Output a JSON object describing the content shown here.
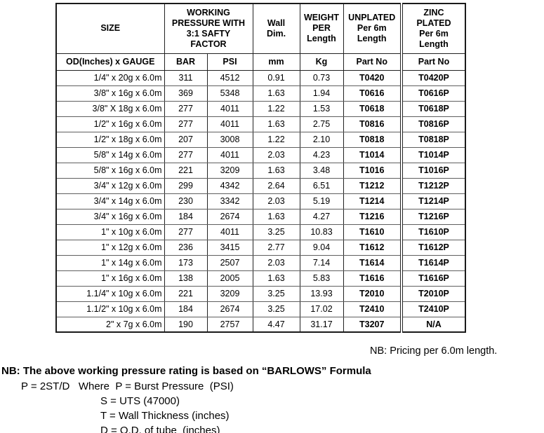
{
  "colors": {
    "background": "#ffffff",
    "text": "#000000",
    "outer_border": "#1a1a1a",
    "vertical_rule": "#222222",
    "row_divider": "#5f5f5f"
  },
  "table": {
    "header1": {
      "size": "SIZE",
      "working_pressure": "WORKING\nPRESSURE WITH\n3:1 SAFTY\nFACTOR",
      "wall_dim": "Wall\nDim.",
      "weight_per_length": "WEIGHT\nPER\nLength",
      "unplated": "UNPLATED\nPer 6m\nLength",
      "zinc_plated": "ZINC\nPLATED\nPer 6m\nLength"
    },
    "header2": {
      "size": "OD(Inches) x GAUGE",
      "bar": "BAR",
      "psi": "PSI",
      "mm": "mm",
      "kg": "Kg",
      "unplated_part_no": "Part No",
      "zinc_part_no": "Part No"
    },
    "rows": [
      [
        "1/4\" x 20g x 6.0m",
        "311",
        "4512",
        "0.91",
        "0.73",
        "T0420",
        "T0420P"
      ],
      [
        "3/8\" x 16g x 6.0m",
        "369",
        "5348",
        "1.63",
        "1.94",
        "T0616",
        "T0616P"
      ],
      [
        "3/8\" X 18g x 6.0m",
        "277",
        "4011",
        "1.22",
        "1.53",
        "T0618",
        "T0618P"
      ],
      [
        "1/2\" x 16g x 6.0m",
        "277",
        "4011",
        "1.63",
        "2.75",
        "T0816",
        "T0816P"
      ],
      [
        "1/2\" x 18g x 6.0m",
        "207",
        "3008",
        "1.22",
        "2.10",
        "T0818",
        "T0818P"
      ],
      [
        "5/8\" x 14g x 6.0m",
        "277",
        "4011",
        "2.03",
        "4.23",
        "T1014",
        "T1014P"
      ],
      [
        "5/8\" x 16g x 6.0m",
        "221",
        "3209",
        "1.63",
        "3.48",
        "T1016",
        "T1016P"
      ],
      [
        "3/4\" x 12g x 6.0m",
        "299",
        "4342",
        "2.64",
        "6.51",
        "T1212",
        "T1212P"
      ],
      [
        "3/4\" x 14g x 6.0m",
        "230",
        "3342",
        "2.03",
        "5.19",
        "T1214",
        "T1214P"
      ],
      [
        "3/4\" x 16g x 6.0m",
        "184",
        "2674",
        "1.63",
        "4.27",
        "T1216",
        "T1216P"
      ],
      [
        "1\" x 10g x 6.0m",
        "277",
        "4011",
        "3.25",
        "10.83",
        "T1610",
        "T1610P"
      ],
      [
        "1\" x 12g x 6.0m",
        "236",
        "3415",
        "2.77",
        "9.04",
        "T1612",
        "T1612P"
      ],
      [
        "1\" x 14g x 6.0m",
        "173",
        "2507",
        "2.03",
        "7.14",
        "T1614",
        "T1614P"
      ],
      [
        "1\" x 16g x 6.0m",
        "138",
        "2005",
        "1.63",
        "5.83",
        "T1616",
        "T1616P"
      ],
      [
        "1.1/4\" x 10g x 6.0m",
        "221",
        "3209",
        "3.25",
        "13.93",
        "T2010",
        "T2010P"
      ],
      [
        "1.1/2\" x 10g x 6.0m",
        "184",
        "2674",
        "3.25",
        "17.02",
        "T2410",
        "T2410P"
      ],
      [
        "2\" x 7g x 6.0m",
        "190",
        "2757",
        "4.47",
        "31.17",
        "T3207",
        "N/A"
      ]
    ]
  },
  "notes": {
    "pricing": "NB: Pricing per 6.0m length.",
    "formula_heading": "NB: The above working pressure rating is based on “BARLOWS” Formula",
    "formula_line_p": "P = 2ST/D   Where  P = Burst Pressure  (PSI)",
    "formula_line_s": "S = UTS (47000)",
    "formula_line_t": "T = Wall Thickness (inches)",
    "formula_line_d": "D = O.D. of tube  (inches)"
  }
}
